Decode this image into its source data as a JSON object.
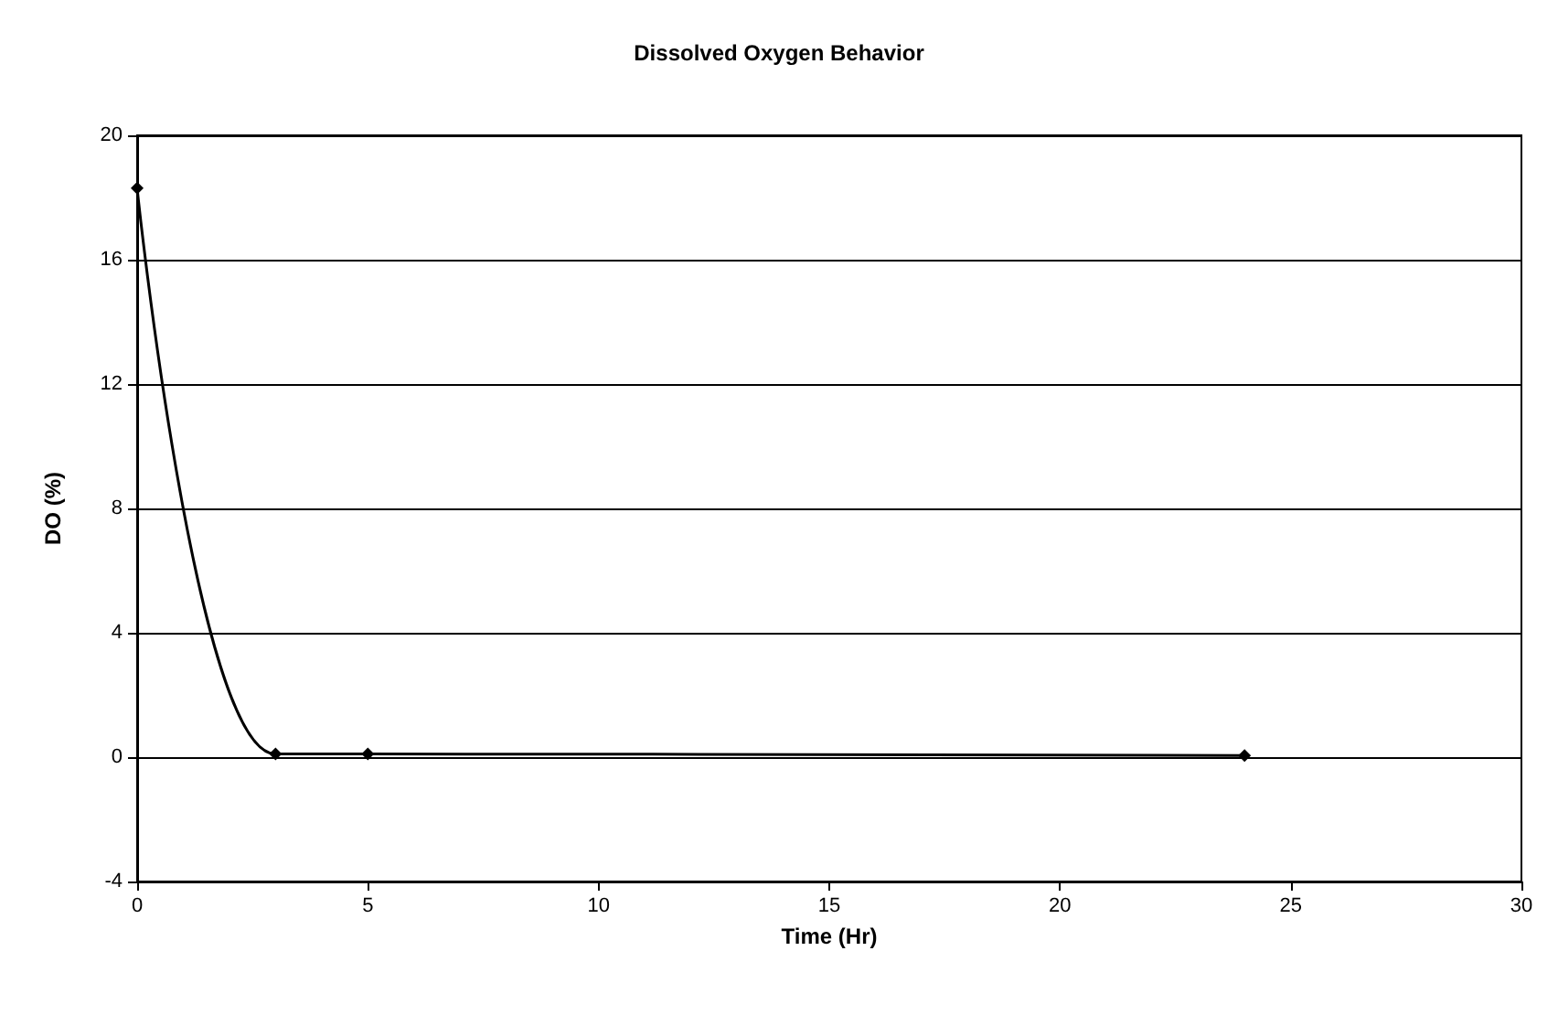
{
  "chart_data": {
    "type": "line",
    "title": "Dissolved Oxygen Behavior",
    "xlabel": "Time (Hr)",
    "ylabel": "DO (%)",
    "x": [
      0,
      3,
      5,
      24
    ],
    "series": [
      {
        "color": "#000000",
        "values": [
          18.3,
          0.1,
          0.1,
          0.05
        ]
      }
    ],
    "xlim": [
      0,
      30
    ],
    "xticks": [
      0,
      5,
      10,
      15,
      20,
      25,
      30
    ],
    "ylim": [
      -4,
      20
    ],
    "yticks": [
      -4,
      0,
      4,
      8,
      12,
      16,
      20
    ],
    "grid": "y",
    "marker": "diamond",
    "line_style": "solid"
  }
}
